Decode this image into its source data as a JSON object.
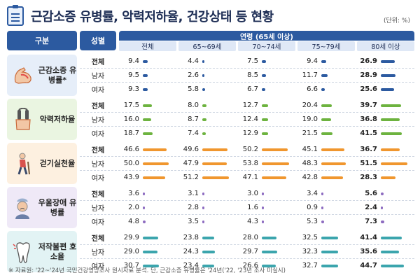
{
  "title": "근감소증 유병률, 악력저하율, 건강상태 등 현황",
  "unit": "(단위: %)",
  "header": {
    "gubun": "구분",
    "sex": "성별",
    "age_group": "연령 (65세 이상)",
    "age_cols": [
      "전체",
      "65~69세",
      "70~74세",
      "75~79세",
      "80세 이상"
    ]
  },
  "sections": [
    {
      "label": "근감소증 유병률*",
      "icon": "muscle-arm-icon",
      "bg": "#e6eef9",
      "bar_color": "#2c5aa0",
      "rows": [
        {
          "sex": "전체",
          "values": [
            "9.4",
            "4.4",
            "7.5",
            "9.4",
            "26.9"
          ],
          "nums": [
            9.4,
            4.4,
            7.5,
            9.4,
            26.9
          ]
        },
        {
          "sex": "남자",
          "values": [
            "9.5",
            "2.6",
            "8.5",
            "11.7",
            "28.9"
          ],
          "nums": [
            9.5,
            2.6,
            8.5,
            11.7,
            28.9
          ]
        },
        {
          "sex": "여자",
          "values": [
            "9.3",
            "5.8",
            "6.7",
            "6.6",
            "25.6"
          ],
          "nums": [
            9.3,
            5.8,
            6.7,
            6.6,
            25.6
          ]
        }
      ]
    },
    {
      "label": "악력저하율",
      "icon": "hand-grip-icon",
      "bg": "#eaf5e1",
      "bar_color": "#6db33f",
      "rows": [
        {
          "sex": "전체",
          "values": [
            "17.5",
            "8.0",
            "12.7",
            "20.4",
            "39.7"
          ],
          "nums": [
            17.5,
            8.0,
            12.7,
            20.4,
            39.7
          ]
        },
        {
          "sex": "남자",
          "values": [
            "16.0",
            "8.7",
            "12.4",
            "19.0",
            "36.8"
          ],
          "nums": [
            16.0,
            8.7,
            12.4,
            19.0,
            36.8
          ]
        },
        {
          "sex": "여자",
          "values": [
            "18.7",
            "7.4",
            "12.9",
            "21.5",
            "41.5"
          ],
          "nums": [
            18.7,
            7.4,
            12.9,
            21.5,
            41.5
          ]
        }
      ]
    },
    {
      "label": "걷기실천율",
      "icon": "walking-elder-icon",
      "bg": "#fdf0e0",
      "bar_color": "#f0962e",
      "rows": [
        {
          "sex": "전체",
          "values": [
            "46.6",
            "49.6",
            "50.2",
            "45.1",
            "36.7"
          ],
          "nums": [
            46.6,
            49.6,
            50.2,
            45.1,
            36.7
          ]
        },
        {
          "sex": "남자",
          "values": [
            "50.0",
            "47.9",
            "53.8",
            "48.3",
            "51.5"
          ],
          "nums": [
            50.0,
            47.9,
            53.8,
            48.3,
            51.5
          ]
        },
        {
          "sex": "여자",
          "values": [
            "43.9",
            "51.2",
            "47.1",
            "42.8",
            "28.3"
          ],
          "nums": [
            43.9,
            51.2,
            47.1,
            42.8,
            28.3
          ]
        }
      ]
    },
    {
      "label": "우울장애 유병률",
      "icon": "sad-person-icon",
      "bg": "#efe9f7",
      "bar_color": "#8d6bc0",
      "rows": [
        {
          "sex": "전체",
          "values": [
            "3.6",
            "3.1",
            "3.0",
            "3.4",
            "5.6"
          ],
          "nums": [
            3.6,
            3.1,
            3.0,
            3.4,
            5.6
          ]
        },
        {
          "sex": "남자",
          "values": [
            "2.0",
            "2.8",
            "1.6",
            "0.9",
            "2.4"
          ],
          "nums": [
            2.0,
            2.8,
            1.6,
            0.9,
            2.4
          ]
        },
        {
          "sex": "여자",
          "values": [
            "4.8",
            "3.5",
            "4.3",
            "5.3",
            "7.3"
          ],
          "nums": [
            4.8,
            3.5,
            4.3,
            5.3,
            7.3
          ]
        }
      ]
    },
    {
      "label": "저작불편 호소율",
      "icon": "tooth-icon",
      "bg": "#e2f3f4",
      "bar_color": "#3ba5ad",
      "rows": [
        {
          "sex": "전체",
          "values": [
            "29.9",
            "23.8",
            "28.0",
            "32.5",
            "41.4"
          ],
          "nums": [
            29.9,
            23.8,
            28.0,
            32.5,
            41.4
          ]
        },
        {
          "sex": "남자",
          "values": [
            "29.0",
            "24.3",
            "29.7",
            "32.3",
            "35.6"
          ],
          "nums": [
            29.0,
            24.3,
            29.7,
            32.3,
            35.6
          ]
        },
        {
          "sex": "여자",
          "values": [
            "30.7",
            "23.4",
            "26.6",
            "32.7",
            "44.7"
          ],
          "nums": [
            30.7,
            23.4,
            26.6,
            32.7,
            44.7
          ]
        }
      ]
    }
  ],
  "footer": "※ 자료원: '22~'24년 국민건강영양조사 원시자료 분석. 단, 근감소증 유병률은 '24년('22, '23년 조사 미실시)"
}
